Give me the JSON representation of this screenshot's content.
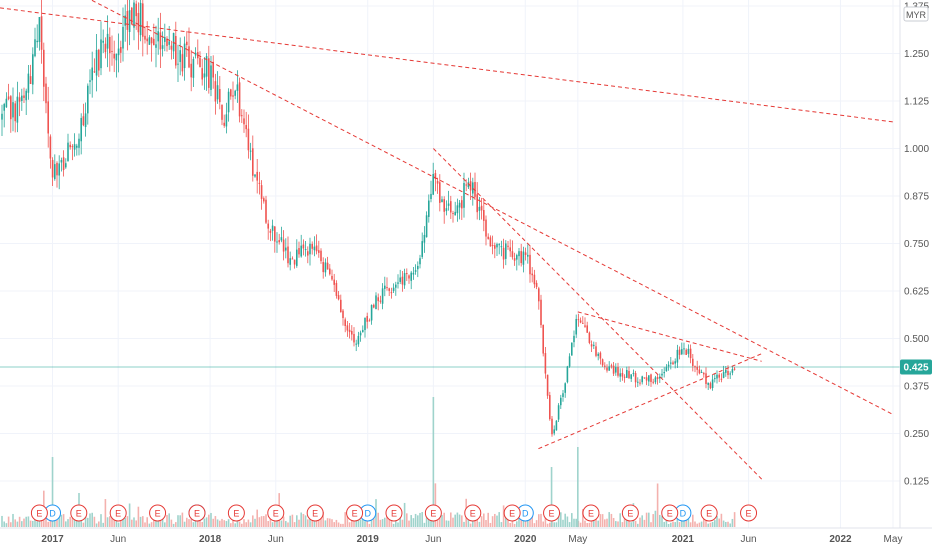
{
  "currency_badge": "MYR",
  "last_price_label": "0.425",
  "colors": {
    "up": "#26a69a",
    "down": "#ef5350",
    "trendline": "#e53935",
    "price_line": "#26a69a",
    "volume_up": "#9fd3cc",
    "volume_down": "#f4b1ae",
    "earnings": "#e53935",
    "dividend": "#2196f3",
    "axis_text": "#555555",
    "grid": "#f0f3fa"
  },
  "chart_data": {
    "type": "candlestick",
    "y_axis": {
      "ticks": [
        "1.375",
        "1.250",
        "1.125",
        "1.000",
        "0.875",
        "0.750",
        "0.625",
        "0.500",
        "0.375",
        "0.250",
        "0.125"
      ],
      "range": [
        0.0,
        1.38
      ]
    },
    "x_axis": {
      "ticks": [
        "2017",
        "Jun",
        "2018",
        "Jun",
        "2019",
        "Jun",
        "2020",
        "May",
        "2021",
        "Jun",
        "2022",
        "May"
      ],
      "range": [
        "2016-09",
        "2022-05"
      ]
    },
    "last_price": 0.425,
    "price_path": [
      [
        "2016-09",
        1.08
      ],
      [
        "2016-11",
        1.13
      ],
      [
        "2016-12",
        1.32
      ],
      [
        "2017-01",
        0.92
      ],
      [
        "2017-03",
        1.05
      ],
      [
        "2017-05",
        1.3
      ],
      [
        "2017-06",
        1.27
      ],
      [
        "2017-07",
        1.36
      ],
      [
        "2017-09",
        1.3
      ],
      [
        "2017-11",
        1.24
      ],
      [
        "2018-01",
        1.2
      ],
      [
        "2018-02",
        1.08
      ],
      [
        "2018-03",
        1.16
      ],
      [
        "2018-05",
        0.84
      ],
      [
        "2018-07",
        0.71
      ],
      [
        "2018-09",
        0.74
      ],
      [
        "2018-11",
        0.58
      ],
      [
        "2018-12",
        0.48
      ],
      [
        "2019-02",
        0.62
      ],
      [
        "2019-05",
        0.7
      ],
      [
        "2019-06",
        0.92
      ],
      [
        "2019-07",
        0.82
      ],
      [
        "2019-09",
        0.91
      ],
      [
        "2019-10",
        0.76
      ],
      [
        "2019-12",
        0.72
      ],
      [
        "2020-01",
        0.72
      ],
      [
        "2020-02",
        0.6
      ],
      [
        "2020-03",
        0.24
      ],
      [
        "2020-04",
        0.38
      ],
      [
        "2020-05",
        0.56
      ],
      [
        "2020-07",
        0.42
      ],
      [
        "2020-09",
        0.4
      ],
      [
        "2020-11",
        0.39
      ],
      [
        "2021-01",
        0.48
      ],
      [
        "2021-03",
        0.38
      ],
      [
        "2021-05",
        0.43
      ]
    ],
    "trendlines": [
      {
        "from": [
          "2016-09",
          1.37
        ],
        "to": [
          "2022-05",
          1.07
        ]
      },
      {
        "from": [
          "2017-04",
          1.39
        ],
        "to": [
          "2022-05",
          0.3
        ]
      },
      {
        "from": [
          "2019-06",
          1.0
        ],
        "to": [
          "2021-07",
          0.13
        ]
      },
      {
        "from": [
          "2020-05",
          0.57
        ],
        "to": [
          "2021-07",
          0.44
        ]
      },
      {
        "from": [
          "2020-02",
          0.21
        ],
        "to": [
          "2021-07",
          0.46
        ]
      }
    ],
    "earnings_markers": [
      {
        "date": "2016-12",
        "type": "E"
      },
      {
        "date": "2017-03",
        "type": "E"
      },
      {
        "date": "2017-06",
        "type": "E"
      },
      {
        "date": "2017-09",
        "type": "E"
      },
      {
        "date": "2017-12",
        "type": "E"
      },
      {
        "date": "2018-03",
        "type": "E"
      },
      {
        "date": "2018-06",
        "type": "E"
      },
      {
        "date": "2018-09",
        "type": "E"
      },
      {
        "date": "2018-12",
        "type": "E"
      },
      {
        "date": "2019-03",
        "type": "E"
      },
      {
        "date": "2019-06",
        "type": "E"
      },
      {
        "date": "2019-09",
        "type": "E"
      },
      {
        "date": "2019-12",
        "type": "E"
      },
      {
        "date": "2020-03",
        "type": "E"
      },
      {
        "date": "2020-06",
        "type": "E"
      },
      {
        "date": "2020-09",
        "type": "E"
      },
      {
        "date": "2020-12",
        "type": "E"
      },
      {
        "date": "2021-03",
        "type": "E"
      },
      {
        "date": "2021-06",
        "type": "E"
      }
    ],
    "dividend_markers": [
      {
        "date": "2017-01",
        "type": "D"
      },
      {
        "date": "2017-12",
        "type": "D"
      },
      {
        "date": "2019-01",
        "type": "D"
      },
      {
        "date": "2020-01",
        "type": "D"
      },
      {
        "date": "2021-01",
        "type": "D"
      }
    ]
  }
}
